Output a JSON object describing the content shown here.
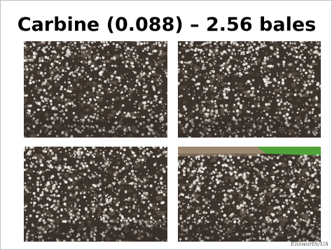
{
  "slide": {
    "title": "Carbine (0.088) – 2.56 bales",
    "credit": "Ellsworth/UA"
  },
  "photos": [
    {
      "subject": "cotton field, open bolls",
      "scene": "field-only"
    },
    {
      "subject": "cotton field, open bolls",
      "scene": "field-only"
    },
    {
      "subject": "cotton field, open bolls",
      "scene": "field-only"
    },
    {
      "subject": "cotton field, open bolls",
      "scene": "field-with-horizon"
    }
  ],
  "colors": {
    "foliage_dark": "#3b332c",
    "foliage_mid": "#6b5e52",
    "boll_white": "#f2f0ea",
    "grass_green": "#4fa33a",
    "horizon_soil": "#9d8871"
  }
}
